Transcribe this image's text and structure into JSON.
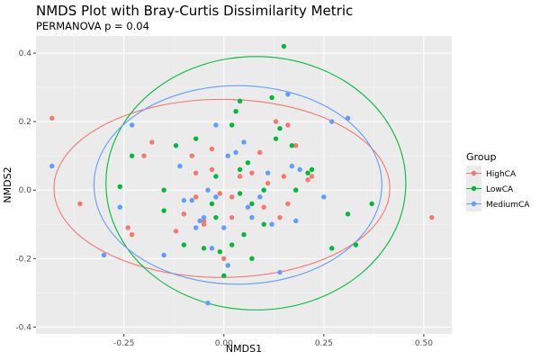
{
  "chart_data": {
    "type": "scatter",
    "title": "NMDS Plot with Bray-Curtis Dissimilarity Metric",
    "subtitle": "PERMANOVA p = 0.04",
    "xlabel": "NMDS1",
    "ylabel": "NMDS2",
    "xlim": [
      -0.47,
      0.57
    ],
    "ylim": [
      -0.42,
      0.45
    ],
    "xticks": [
      -0.25,
      0.0,
      0.25,
      0.5
    ],
    "xtick_labels": [
      "-0.25",
      "0.00",
      "0.25",
      "0.50"
    ],
    "yticks": [
      -0.4,
      -0.2,
      0.0,
      0.2,
      0.4
    ],
    "ytick_labels": [
      "-0.4",
      "-0.2",
      "0.0",
      "0.2",
      "0.4"
    ],
    "grid": true,
    "legend": {
      "title": "Group",
      "position": "right"
    },
    "series": [
      {
        "name": "HighCA",
        "color": "#F8766D",
        "points": [
          [
            -0.43,
            0.21
          ],
          [
            -0.36,
            -0.04
          ],
          [
            -0.24,
            -0.11
          ],
          [
            -0.23,
            -0.13
          ],
          [
            -0.2,
            0.1
          ],
          [
            -0.18,
            0.14
          ],
          [
            -0.12,
            -0.12
          ],
          [
            -0.1,
            -0.07
          ],
          [
            -0.08,
            0.1
          ],
          [
            -0.07,
            -0.02
          ],
          [
            -0.07,
            0.05
          ],
          [
            -0.03,
            0.12
          ],
          [
            -0.03,
            0.06
          ],
          [
            -0.05,
            -0.09
          ],
          [
            -0.01,
            -0.01
          ],
          [
            0.02,
            -0.08
          ],
          [
            0.02,
            -0.02
          ],
          [
            0.04,
            0.04
          ],
          [
            0.07,
            0.05
          ],
          [
            0.09,
            0.11
          ],
          [
            0.1,
            -0.05
          ],
          [
            0.11,
            0.02
          ],
          [
            0.13,
            0.2
          ],
          [
            0.14,
            -0.08
          ],
          [
            0.15,
            0.04
          ],
          [
            0.16,
            0.19
          ],
          [
            0.16,
            -0.04
          ],
          [
            0.18,
            0.13
          ],
          [
            0.21,
            0.03
          ],
          [
            0.22,
            0.04
          ],
          [
            -0.05,
            -0.1
          ],
          [
            0.0,
            -0.2
          ],
          [
            0.52,
            -0.08
          ]
        ]
      },
      {
        "name": "LowCA",
        "color": "#00BA38",
        "points": [
          [
            -0.26,
            0.01
          ],
          [
            -0.23,
            0.1
          ],
          [
            -0.15,
            0.0
          ],
          [
            -0.15,
            -0.06
          ],
          [
            -0.12,
            0.13
          ],
          [
            -0.1,
            -0.16
          ],
          [
            -0.07,
            0.15
          ],
          [
            -0.05,
            -0.17
          ],
          [
            -0.03,
            -0.04
          ],
          [
            -0.02,
            -0.08
          ],
          [
            -0.02,
            0.04
          ],
          [
            -0.01,
            -0.18
          ],
          [
            0.0,
            -0.25
          ],
          [
            0.02,
            0.19
          ],
          [
            0.02,
            -0.16
          ],
          [
            0.03,
            0.23
          ],
          [
            0.04,
            0.26
          ],
          [
            0.04,
            0.06
          ],
          [
            0.04,
            -0.01
          ],
          [
            0.05,
            -0.13
          ],
          [
            0.06,
            0.08
          ],
          [
            0.07,
            -0.04
          ],
          [
            0.07,
            -0.2
          ],
          [
            0.1,
            0.0
          ],
          [
            0.1,
            -0.1
          ],
          [
            0.12,
            0.27
          ],
          [
            0.13,
            0.15
          ],
          [
            0.14,
            0.18
          ],
          [
            0.15,
            0.42
          ],
          [
            0.17,
            0.13
          ],
          [
            0.18,
            0.0
          ],
          [
            0.21,
            0.05
          ],
          [
            0.22,
            0.06
          ],
          [
            0.27,
            -0.17
          ],
          [
            0.31,
            -0.07
          ],
          [
            0.33,
            -0.16
          ],
          [
            0.37,
            -0.04
          ]
        ]
      },
      {
        "name": "MediumCA",
        "color": "#619CFF",
        "points": [
          [
            -0.43,
            0.07
          ],
          [
            -0.3,
            -0.19
          ],
          [
            -0.26,
            -0.05
          ],
          [
            -0.23,
            0.19
          ],
          [
            -0.15,
            -0.19
          ],
          [
            -0.11,
            0.07
          ],
          [
            -0.1,
            -0.03
          ],
          [
            -0.08,
            -0.03
          ],
          [
            -0.07,
            -0.11
          ],
          [
            -0.06,
            -0.09
          ],
          [
            -0.05,
            -0.08
          ],
          [
            -0.04,
            -0.33
          ],
          [
            -0.04,
            0.0
          ],
          [
            -0.03,
            -0.17
          ],
          [
            -0.02,
            -0.02
          ],
          [
            -0.02,
            0.19
          ],
          [
            0.0,
            -0.11
          ],
          [
            0.01,
            0.1
          ],
          [
            0.01,
            -0.22
          ],
          [
            0.03,
            0.11
          ],
          [
            0.05,
            0.14
          ],
          [
            0.06,
            -0.05
          ],
          [
            0.07,
            -0.08
          ],
          [
            0.09,
            -0.02
          ],
          [
            0.11,
            0.05
          ],
          [
            0.12,
            -0.1
          ],
          [
            0.14,
            -0.24
          ],
          [
            0.16,
            0.28
          ],
          [
            0.17,
            0.07
          ],
          [
            0.18,
            -0.09
          ],
          [
            0.19,
            0.06
          ],
          [
            0.25,
            -0.02
          ],
          [
            0.27,
            0.2
          ],
          [
            0.31,
            0.21
          ]
        ]
      }
    ],
    "ellipses": [
      {
        "series": "HighCA",
        "center": [
          -0.005,
          0.005
        ],
        "radii": [
          0.42,
          0.26
        ]
      },
      {
        "series": "LowCA",
        "center": [
          0.08,
          0.02
        ],
        "radii": [
          0.375,
          0.37
        ]
      },
      {
        "series": "MediumCA",
        "center": [
          0.035,
          0.015
        ],
        "radii": [
          0.36,
          0.29
        ]
      }
    ]
  }
}
